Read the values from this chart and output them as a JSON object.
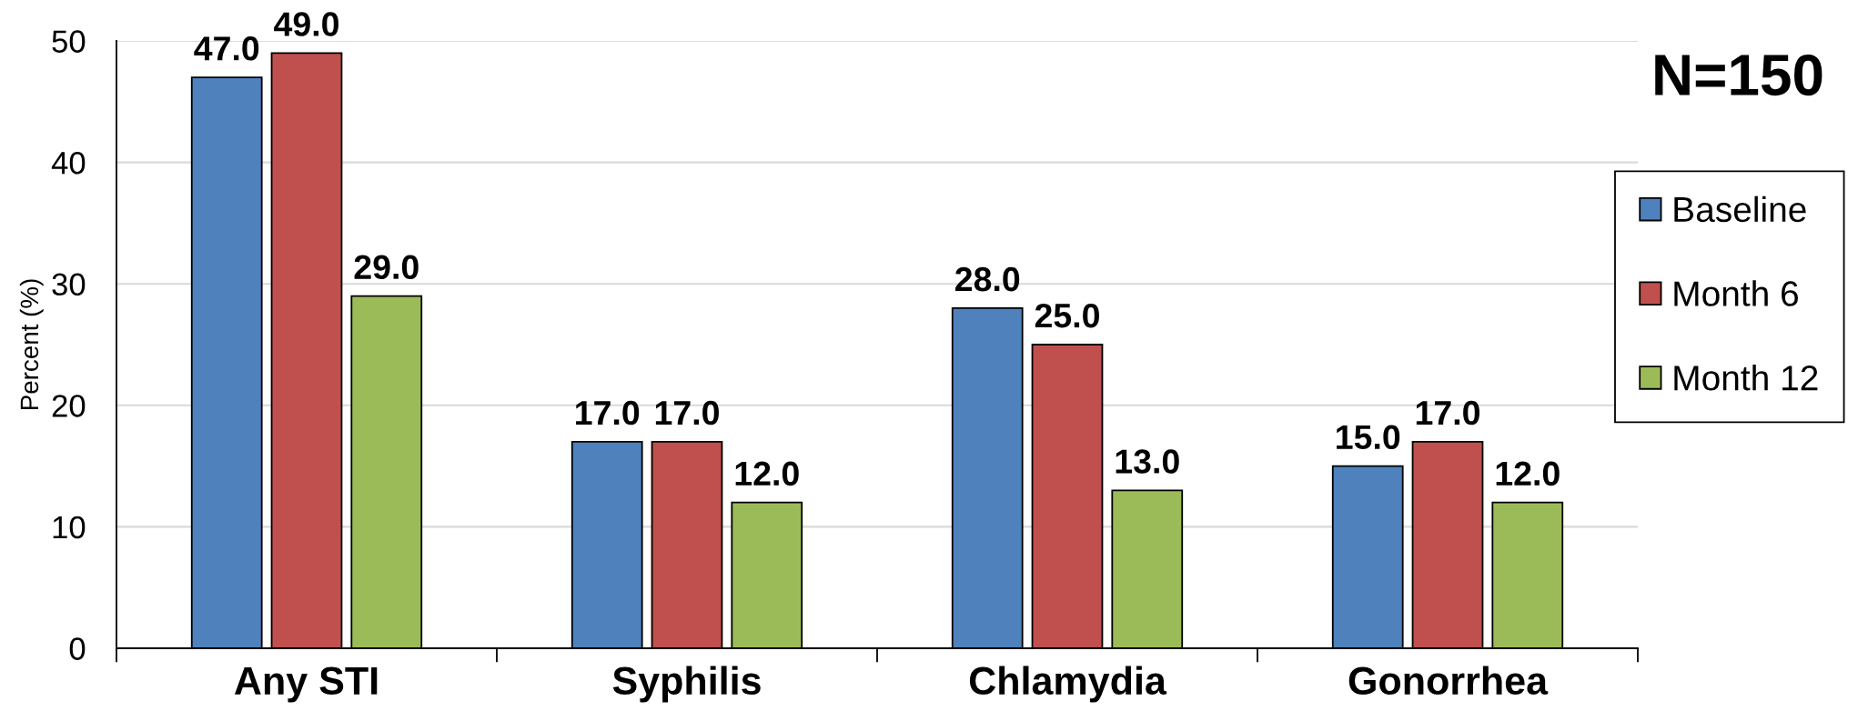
{
  "chart_data": {
    "type": "bar",
    "ylabel": "Percent (%)",
    "annotations": [
      "N=150"
    ],
    "categories": [
      "Any STI",
      "Syphilis",
      "Chlamydia",
      "Gonorrhea"
    ],
    "series": [
      {
        "name": "Baseline",
        "color": "#4f81bd",
        "values": [
          47,
          17,
          28,
          15
        ],
        "value_labels": [
          "47.0",
          "17.0",
          "28.0",
          "15.0"
        ]
      },
      {
        "name": "Month 6",
        "color": "#c0504d",
        "values": [
          49,
          17,
          25,
          17
        ],
        "value_labels": [
          "49.0",
          "17.0",
          "25.0",
          "17.0"
        ]
      },
      {
        "name": "Month 12",
        "color": "#9bbb59",
        "values": [
          29,
          12,
          13,
          12
        ],
        "value_labels": [
          "29.0",
          "12.0",
          "13.0",
          "12.0"
        ]
      }
    ],
    "ylim": [
      0,
      50
    ],
    "yticks": [
      0,
      10,
      20,
      30,
      40,
      50
    ],
    "grid": "y",
    "legend": "right"
  }
}
